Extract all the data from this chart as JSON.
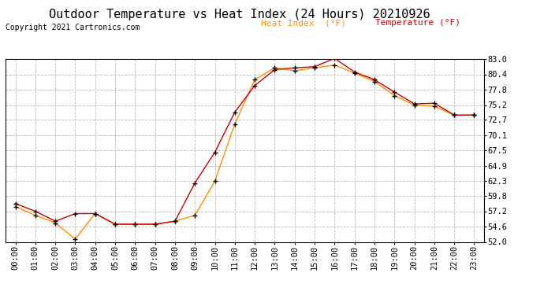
{
  "title": "Outdoor Temperature vs Heat Index (24 Hours) 20210926",
  "copyright": "Copyright 2021 Cartronics.com",
  "legend_heat_index": "Heat Index  (°F)",
  "legend_temperature": "Temperature (°F)",
  "hours": [
    "00:00",
    "01:00",
    "02:00",
    "03:00",
    "04:00",
    "05:00",
    "06:00",
    "07:00",
    "08:00",
    "09:00",
    "10:00",
    "11:00",
    "12:00",
    "13:00",
    "14:00",
    "15:00",
    "16:00",
    "17:00",
    "18:00",
    "19:00",
    "20:00",
    "21:00",
    "22:00",
    "23:00"
  ],
  "temperature": [
    58.5,
    57.2,
    55.5,
    56.8,
    56.8,
    55.0,
    55.0,
    55.0,
    55.5,
    62.0,
    67.2,
    74.0,
    78.5,
    81.2,
    81.5,
    81.7,
    83.1,
    80.8,
    79.5,
    77.4,
    75.4,
    75.5,
    73.5,
    73.5
  ],
  "heat_index": [
    58.0,
    56.5,
    55.2,
    52.5,
    56.8,
    55.0,
    55.0,
    55.0,
    55.5,
    56.5,
    62.3,
    72.0,
    79.5,
    81.5,
    81.0,
    81.5,
    82.0,
    80.6,
    79.2,
    76.8,
    75.2,
    75.0,
    73.5,
    73.5
  ],
  "ylim_min": 52.0,
  "ylim_max": 83.0,
  "yticks": [
    52.0,
    54.6,
    57.2,
    59.8,
    62.3,
    64.9,
    67.5,
    70.1,
    72.7,
    75.2,
    77.8,
    80.4,
    83.0
  ],
  "color_temperature": "#cc0000",
  "color_heat_index": "#ff8c00",
  "color_marker": "#000000",
  "background_color": "#ffffff",
  "grid_color": "#bbbbbb",
  "title_fontsize": 11,
  "tick_fontsize": 7.5,
  "copyright_fontsize": 7,
  "legend_fontsize": 8
}
